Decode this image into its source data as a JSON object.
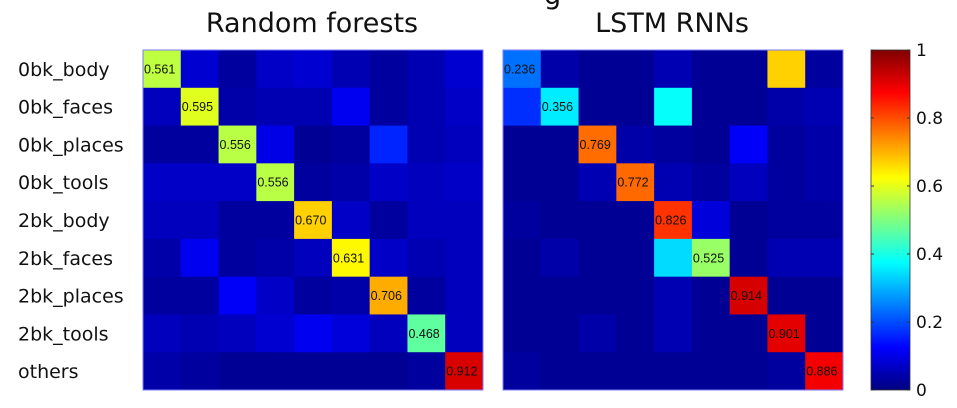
{
  "cut_off_heading_fragment": "g",
  "chart_data": [
    {
      "type": "heatmap",
      "title": "Random forests",
      "row_labels": [
        "0bk_body",
        "0bk_faces",
        "0bk_places",
        "0bk_tools",
        "2bk_body",
        "2bk_faces",
        "2bk_places",
        "2bk_tools",
        "others"
      ],
      "values": [
        [
          0.561,
          0.08,
          0.03,
          0.07,
          0.08,
          0.05,
          0.03,
          0.05,
          0.08
        ],
        [
          0.06,
          0.595,
          0.04,
          0.05,
          0.05,
          0.11,
          0.03,
          0.05,
          0.07
        ],
        [
          0.03,
          0.03,
          0.556,
          0.1,
          0.02,
          0.03,
          0.16,
          0.05,
          0.06
        ],
        [
          0.07,
          0.07,
          0.07,
          0.556,
          0.03,
          0.04,
          0.07,
          0.06,
          0.07
        ],
        [
          0.06,
          0.06,
          0.03,
          0.03,
          0.67,
          0.07,
          0.03,
          0.06,
          0.06
        ],
        [
          0.04,
          0.11,
          0.03,
          0.04,
          0.06,
          0.631,
          0.07,
          0.05,
          0.06
        ],
        [
          0.03,
          0.03,
          0.12,
          0.07,
          0.03,
          0.04,
          0.706,
          0.03,
          0.06
        ],
        [
          0.06,
          0.05,
          0.06,
          0.08,
          0.11,
          0.09,
          0.06,
          0.468,
          0.06
        ],
        [
          0.04,
          0.03,
          0.02,
          0.02,
          0.02,
          0.02,
          0.02,
          0.03,
          0.912
        ]
      ],
      "data_labels": [
        "0.561",
        "0.595",
        "0.556",
        "0.556",
        "0.670",
        "0.631",
        "0.706",
        "0.468",
        "0.912"
      ],
      "colormap": "jet",
      "clim": [
        0,
        1
      ]
    },
    {
      "type": "heatmap",
      "title": "LSTM RNNs",
      "values": [
        [
          0.236,
          0.04,
          0.02,
          0.02,
          0.05,
          0.02,
          0.02,
          0.67,
          0.03
        ],
        [
          0.17,
          0.356,
          0.02,
          0.02,
          0.38,
          0.02,
          0.02,
          0.04,
          0.05
        ],
        [
          0.02,
          0.02,
          0.769,
          0.04,
          0.03,
          0.02,
          0.12,
          0.03,
          0.04
        ],
        [
          0.02,
          0.02,
          0.05,
          0.772,
          0.05,
          0.03,
          0.06,
          0.03,
          0.04
        ],
        [
          0.03,
          0.02,
          0.02,
          0.02,
          0.826,
          0.09,
          0.02,
          0.03,
          0.03
        ],
        [
          0.02,
          0.04,
          0.02,
          0.02,
          0.34,
          0.525,
          0.02,
          0.05,
          0.05
        ],
        [
          0.02,
          0.02,
          0.02,
          0.02,
          0.05,
          0.02,
          0.914,
          0.02,
          0.02
        ],
        [
          0.02,
          0.02,
          0.04,
          0.02,
          0.05,
          0.02,
          0.02,
          0.901,
          0.02
        ],
        [
          0.03,
          0.02,
          0.02,
          0.02,
          0.02,
          0.02,
          0.02,
          0.03,
          0.886
        ]
      ],
      "data_labels": [
        "0.236",
        "0.356",
        "0.769",
        "0.772",
        "0.826",
        "0.525",
        "0.914",
        "0.901",
        "0.886"
      ],
      "colormap": "jet",
      "clim": [
        0,
        1
      ]
    }
  ],
  "colorbar": {
    "range": [
      0,
      1
    ],
    "ticks": [
      "0",
      "0.2",
      "0.4",
      "0.6",
      "0.8",
      "1"
    ]
  }
}
